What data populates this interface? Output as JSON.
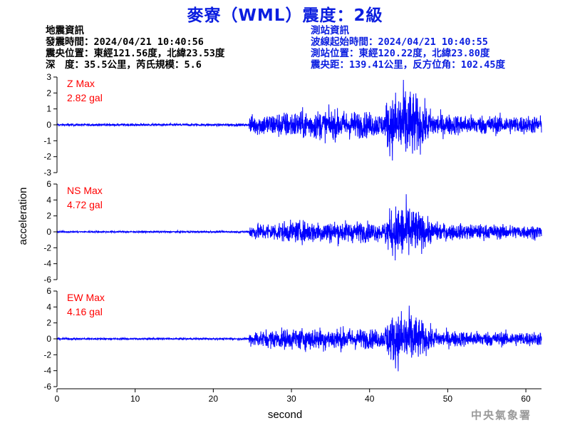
{
  "title": "麥寮（WML）震度：2級",
  "event_info": {
    "heading": "地震資訊",
    "origin_time": "發震時間：2024/04/21 10:40:56",
    "epicenter": "震央位置：東經121.56度，北緯23.53度",
    "depth_magnitude": "深　度：35.5公里，芮氏規模：5.6"
  },
  "station_info": {
    "heading": "測站資訊",
    "wave_start": "波線起始時間：2024/04/21 10:40:55",
    "location": "測站位置：東經120.22度，北緯23.80度",
    "distance": "震央距：139.41公里，反方位角：102.45度"
  },
  "footer": "中央氣象署",
  "colors": {
    "trace": "#0000ff",
    "title": "#0b1ee0",
    "max_label": "#ff0000"
  },
  "chart_data": {
    "type": "line",
    "xlabel": "second",
    "ylabel": "acceleration",
    "xlim": [
      0,
      62
    ],
    "xticks": [
      0,
      10,
      20,
      30,
      40,
      50,
      60
    ],
    "grid": false,
    "panels": [
      {
        "component": "Z",
        "max_label": "Z Max",
        "max_value": "2.82 gal",
        "max": 2.82,
        "ylim": [
          -3,
          3
        ],
        "yticks": [
          -3,
          -2,
          -1,
          0,
          1,
          2,
          3
        ],
        "p_arrival": 24.6,
        "s_arrival": 42.0
      },
      {
        "component": "NS",
        "max_label": "NS Max",
        "max_value": "4.72 gal",
        "max": 4.72,
        "ylim": [
          -6,
          6
        ],
        "yticks": [
          -6,
          -4,
          -2,
          0,
          2,
          4,
          6
        ],
        "p_arrival": 24.6,
        "s_arrival": 42.0
      },
      {
        "component": "EW",
        "max_label": "EW Max",
        "max_value": "4.16 gal",
        "max": 4.16,
        "ylim": [
          -6,
          6
        ],
        "yticks": [
          -6,
          -4,
          -2,
          0,
          2,
          4,
          6
        ],
        "p_arrival": 24.6,
        "s_arrival": 42.0
      }
    ]
  }
}
